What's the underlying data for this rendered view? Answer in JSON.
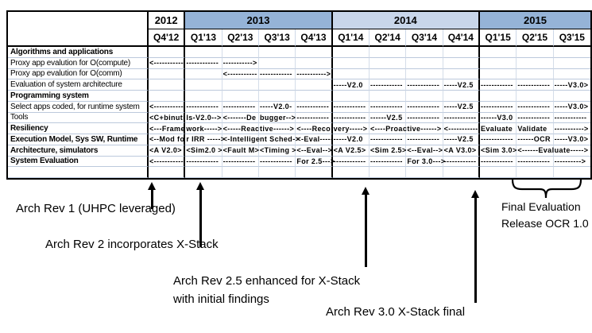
{
  "table": {
    "years": [
      {
        "label": "2012",
        "span": 1,
        "shade": "plain"
      },
      {
        "label": "2013",
        "span": 4,
        "shade": "medium"
      },
      {
        "label": "2014",
        "span": 4,
        "shade": "pale"
      },
      {
        "label": "2015",
        "span": 3,
        "shade": "medium"
      }
    ],
    "quarters": [
      "Q4'12",
      "Q1'13",
      "Q2'13",
      "Q3'13",
      "Q4'13",
      "Q1'14",
      "Q2'14",
      "Q3'14",
      "Q4'14",
      "Q1'15",
      "Q2'15",
      "Q3'15"
    ],
    "rows": [
      {
        "label": "Algorithms and applications",
        "bold": true,
        "cells": [
          "",
          "",
          "",
          "",
          "",
          "",
          "",
          "",
          "",
          "",
          "",
          ""
        ]
      },
      {
        "label": "Proxy app evalution for O(compute)",
        "bold": false,
        "cells": [
          "<-----------",
          "------------",
          "----------->",
          "",
          "",
          "",
          "",
          "",
          "",
          "",
          "",
          ""
        ]
      },
      {
        "label": "Proxy app evalution for O(comm)",
        "bold": false,
        "cells": [
          "",
          "",
          "<-----------",
          "------------",
          "----------->",
          "",
          "",
          "",
          "",
          "",
          "",
          ""
        ]
      },
      {
        "label": "Evaluation of system architecture",
        "bold": false,
        "cells": [
          "",
          "",
          "",
          "",
          "",
          "-----V2.0",
          "------------",
          "------------",
          "-----V2.5",
          "------------",
          "------------",
          "-----V3.0>"
        ]
      },
      {
        "label": "Programming system",
        "bold": true,
        "cells": [
          "",
          "",
          "",
          "",
          "",
          "",
          "",
          "",
          "",
          "",
          "",
          ""
        ]
      },
      {
        "label": "Select apps coded, for runtime system",
        "bold": false,
        "cells": [
          "<-----------",
          "------------",
          "------------",
          "-----V2.0-",
          "------------",
          "------------",
          "------------",
          "------------",
          "-----V2.5",
          "------------",
          "------------",
          "-----V3.0>"
        ]
      },
      {
        "label": "Tools",
        "bold": false,
        "cells": [
          "<C+binuti",
          "ls-V2.0-->",
          "<-------De",
          "bugger-->",
          "------------",
          "------------",
          "------V2.5",
          "------------",
          "------------",
          "------V3.0",
          "------------",
          "------------"
        ]
      },
      {
        "label": "Resiliency",
        "bold": true,
        "cells": [
          "<---Frame",
          "work----->",
          "<-----Reac",
          "tive------>",
          "<----Reco",
          "very----->",
          "<----Proac",
          "tive------>",
          "<-----------",
          "Evaluate",
          "Validate",
          "----------->"
        ]
      },
      {
        "label": "Execution Model, Sys SW, Runtime",
        "bold": true,
        "cells": [
          "<--Mod fo",
          "r IRR ----->",
          "<-Intellige",
          "nt Sched->",
          "<-Eval-----",
          "-----V2.0",
          "------------",
          "------------",
          "-----V2.5",
          "------------",
          "------OCR",
          "-----V3.0>"
        ]
      },
      {
        "label": "Architecture, simulators",
        "bold": true,
        "cells": [
          "<A V2.0>",
          "<Sim2.0 >",
          "<Fault M>",
          "<Timing >",
          "<--Eval-->",
          "<A V2.5>",
          "<Sim 2.5>",
          "<--Eval-->",
          "<A V3.0>",
          "<Sim 3.0>",
          "<------Eval",
          "uate----->"
        ]
      },
      {
        "label": "System Evaluation",
        "bold": true,
        "cells": [
          "<-----------",
          "------------",
          "------------",
          "------------",
          "For 2.5--->",
          "------------",
          "------------",
          "For 3.0--->",
          "------------",
          "------------",
          "------------",
          "---------->"
        ]
      },
      {
        "label": "",
        "bold": false,
        "cells": [
          "",
          "",
          "",
          "",
          "",
          "",
          "",
          "",
          "",
          "",
          "",
          ""
        ]
      }
    ]
  },
  "annotations": {
    "rev1": "Arch Rev 1 (UHPC leveraged)",
    "rev2": "Arch Rev 2 incorporates X-Stack",
    "rev25_line1": "Arch Rev 2.5 enhanced for X-Stack",
    "rev25_line2": "with initial findings",
    "rev3": "Arch Rev 3.0 X-Stack final",
    "final_line1": "Final Evaluation",
    "final_line2": "Release OCR 1.0"
  },
  "colors": {
    "year_band_medium": "#95B3D7",
    "year_band_pale": "#C8D6EA",
    "grid_line": "#BCC9DC",
    "border": "#000000",
    "text": "#000000"
  }
}
